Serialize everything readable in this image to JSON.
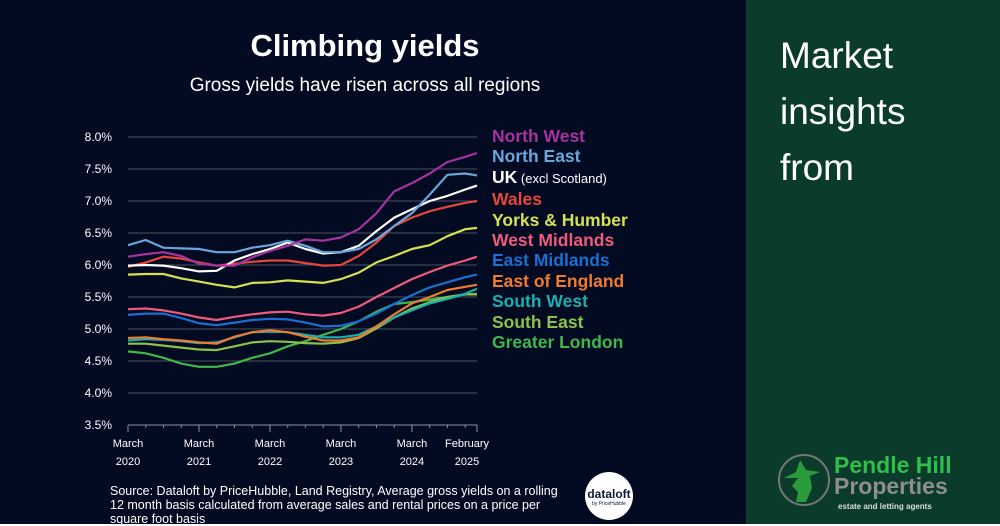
{
  "header": {
    "title": "Climbing yields",
    "subtitle": "Gross yields have risen across all regions"
  },
  "source": "Source: Dataloft by PriceHubble, Land Registry, Average gross yields on a rolling 12 month basis calculated from average sales and rental prices on a price per square foot basis",
  "dataloft_logo": {
    "name": "dataloft",
    "tag": "by PriceHubble"
  },
  "side": {
    "lines": [
      "Market",
      "insights",
      "from"
    ]
  },
  "brand_logo": {
    "name1": "Pendle Hill",
    "name2": "Properties",
    "tagline": "estate and letting agents",
    "color": "#2fbf4a"
  },
  "chart_data": {
    "type": "line",
    "title": "Climbing yields",
    "subtitle": "Gross yields have risen across all regions",
    "ylim": [
      3.5,
      8.0
    ],
    "yticks": [
      "8.0%",
      "7.5%",
      "7.0%",
      "6.5%",
      "6.0%",
      "5.5%",
      "5.0%",
      "4.5%",
      "4.0%",
      "3.5%"
    ],
    "xticks": [
      {
        "month": "March",
        "year": "2020",
        "date": "2020-03"
      },
      {
        "month": "March",
        "year": "2021",
        "date": "2021-03"
      },
      {
        "month": "March",
        "year": "2022",
        "date": "2022-03"
      },
      {
        "month": "March",
        "year": "2023",
        "date": "2023-03"
      },
      {
        "month": "March",
        "year": "2024",
        "date": "2024-03"
      },
      {
        "month": "February",
        "year": "2025",
        "date": "2025-02"
      }
    ],
    "grid": true,
    "legend_placement": "right",
    "x": [
      "2020-03",
      "2020-06",
      "2020-09",
      "2020-12",
      "2021-03",
      "2021-06",
      "2021-09",
      "2021-12",
      "2022-03",
      "2022-06",
      "2022-09",
      "2022-12",
      "2023-03",
      "2023-06",
      "2023-09",
      "2023-12",
      "2024-03",
      "2024-06",
      "2024-09",
      "2024-12",
      "2025-02"
    ],
    "series": [
      {
        "name": "North West",
        "color": "#a8329e",
        "values": [
          6.13,
          6.17,
          6.2,
          6.14,
          6.02,
          5.99,
          5.99,
          6.12,
          6.22,
          6.3,
          6.4,
          6.38,
          6.43,
          6.56,
          6.81,
          7.15,
          7.28,
          7.43,
          7.61,
          7.69,
          7.75
        ]
      },
      {
        "name": "North East",
        "color": "#6aa6dc",
        "values": [
          6.31,
          6.39,
          6.27,
          6.26,
          6.25,
          6.2,
          6.2,
          6.27,
          6.31,
          6.38,
          6.3,
          6.2,
          6.2,
          6.25,
          6.4,
          6.61,
          6.81,
          7.1,
          7.41,
          7.43,
          7.4
        ]
      },
      {
        "name": "UK",
        "note": "(excl Scotland)",
        "color": "#ffffff",
        "values": [
          5.99,
          6.0,
          5.99,
          5.95,
          5.9,
          5.91,
          6.07,
          6.17,
          6.25,
          6.35,
          6.25,
          6.18,
          6.2,
          6.3,
          6.53,
          6.74,
          6.87,
          7.0,
          7.08,
          7.18,
          7.24
        ]
      },
      {
        "name": "Wales",
        "color": "#e8463a",
        "values": [
          5.97,
          6.04,
          6.13,
          6.1,
          6.04,
          5.99,
          6.02,
          6.05,
          6.07,
          6.07,
          6.03,
          5.99,
          6.0,
          6.14,
          6.35,
          6.61,
          6.74,
          6.84,
          6.91,
          6.97,
          7.0
        ]
      },
      {
        "name": "Yorks & Humber",
        "color": "#d6e052",
        "values": [
          5.85,
          5.86,
          5.86,
          5.79,
          5.74,
          5.69,
          5.65,
          5.72,
          5.73,
          5.76,
          5.74,
          5.72,
          5.78,
          5.88,
          6.04,
          6.14,
          6.25,
          6.31,
          6.45,
          6.56,
          6.58
        ]
      },
      {
        "name": "West Midlands",
        "color": "#f05a7c",
        "values": [
          5.31,
          5.32,
          5.29,
          5.24,
          5.18,
          5.14,
          5.19,
          5.23,
          5.26,
          5.27,
          5.23,
          5.21,
          5.25,
          5.35,
          5.5,
          5.64,
          5.78,
          5.89,
          5.99,
          6.07,
          6.13
        ]
      },
      {
        "name": "East Midlands",
        "color": "#1a6fd0",
        "values": [
          5.22,
          5.24,
          5.24,
          5.17,
          5.09,
          5.06,
          5.1,
          5.14,
          5.16,
          5.15,
          5.1,
          5.04,
          5.05,
          5.12,
          5.24,
          5.39,
          5.53,
          5.65,
          5.73,
          5.81,
          5.85
        ]
      },
      {
        "name": "East of England",
        "color": "#f07a30",
        "values": [
          4.86,
          4.87,
          4.84,
          4.82,
          4.79,
          4.77,
          4.88,
          4.95,
          4.98,
          4.95,
          4.88,
          4.82,
          4.82,
          4.87,
          5.04,
          5.23,
          5.4,
          5.5,
          5.61,
          5.66,
          5.69
        ]
      },
      {
        "name": "South West",
        "color": "#18b0b0",
        "values": [
          4.82,
          4.84,
          4.83,
          4.81,
          4.78,
          4.79,
          4.87,
          4.95,
          4.96,
          4.95,
          4.91,
          4.87,
          4.87,
          4.91,
          5.04,
          5.18,
          5.29,
          5.4,
          5.47,
          5.55,
          5.63
        ]
      },
      {
        "name": "South East",
        "color": "#8cc24a",
        "values": [
          4.77,
          4.77,
          4.74,
          4.71,
          4.68,
          4.67,
          4.73,
          4.79,
          4.81,
          4.8,
          4.78,
          4.77,
          4.79,
          4.86,
          5.01,
          5.18,
          5.32,
          5.42,
          5.5,
          5.54,
          5.54
        ]
      },
      {
        "name": "Greater London",
        "color": "#40b84a",
        "values": [
          4.65,
          4.62,
          4.55,
          4.46,
          4.41,
          4.41,
          4.46,
          4.55,
          4.62,
          4.73,
          4.81,
          4.91,
          5.0,
          5.12,
          5.27,
          5.39,
          5.42,
          5.46,
          5.5,
          5.54,
          5.55
        ]
      }
    ]
  }
}
